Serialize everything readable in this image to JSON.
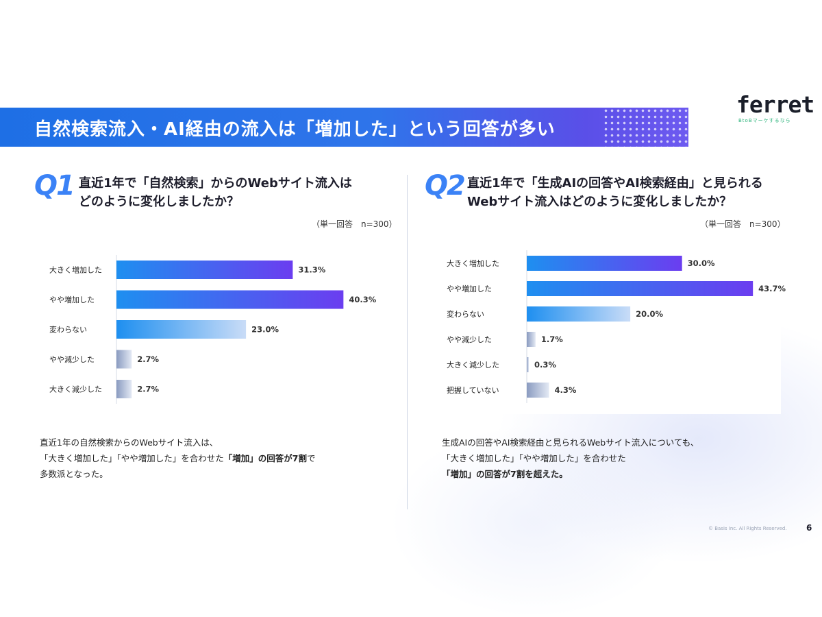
{
  "banner": {
    "title": "自然検索流入・AI経由の流入は「増加した」という回答が多い"
  },
  "logo": {
    "name": "ferret",
    "tagline": "BtoBマーケするなら"
  },
  "q1": {
    "number": "Q1",
    "question_line1": "直近1年で「自然検索」からのWebサイト流入は",
    "question_line2": "どのように変化しましたか？",
    "note": "（単一回答　n=300）",
    "desc_line1": "直近1年の自然検索からのWebサイト流入は、",
    "desc_line2_pre": "「大きく増加した」「やや増加した」を合わせた",
    "desc_line2_bold": "「増加」の回答が7割",
    "desc_line2_post": "で",
    "desc_line3": "多数派となった。"
  },
  "q2": {
    "number": "Q2",
    "question_line1": "直近1年で「生成AIの回答やAI検索経由」と見られる",
    "question_line2": "Webサイト流入はどのように変化しましたか？",
    "note": "（単一回答　n=300）",
    "desc_line1": "生成AIの回答やAI検索経由と見られるWebサイト流入についても、",
    "desc_line2": "「大きく増加した」「やや増加した」を合わせた",
    "desc_line3_bold": "「増加」の回答が7割",
    "desc_line3_post": "を超えた。"
  },
  "footer": {
    "copyright": "© Basis Inc. All Rights Reserved.",
    "page": "6"
  },
  "colors": {
    "increase_strong": "#6b3df0",
    "increase_start": "#1e8ff0",
    "neutral_end": "#c9dcf7",
    "decrease": "#8a9bc0"
  },
  "chart_data": [
    {
      "type": "bar",
      "orientation": "horizontal",
      "categories": [
        "大きく増加した",
        "やや増加した",
        "変わらない",
        "やや減少した",
        "大きく減少した"
      ],
      "values": [
        31.3,
        40.3,
        23.0,
        2.7,
        2.7
      ],
      "value_labels": [
        "31.3%",
        "40.3%",
        "23.0%",
        "2.7%",
        "2.7%"
      ],
      "unit": "%",
      "xlim": [
        0,
        45
      ],
      "grid": false
    },
    {
      "type": "bar",
      "orientation": "horizontal",
      "categories": [
        "大きく増加した",
        "やや増加した",
        "変わらない",
        "やや減少した",
        "大きく減少した",
        "把握していない"
      ],
      "values": [
        30.0,
        43.7,
        20.0,
        1.7,
        0.3,
        4.3
      ],
      "value_labels": [
        "30.0%",
        "43.7%",
        "20.0%",
        "1.7%",
        "0.3%",
        "4.3%"
      ],
      "unit": "%",
      "xlim": [
        0,
        45
      ],
      "grid": false
    }
  ]
}
